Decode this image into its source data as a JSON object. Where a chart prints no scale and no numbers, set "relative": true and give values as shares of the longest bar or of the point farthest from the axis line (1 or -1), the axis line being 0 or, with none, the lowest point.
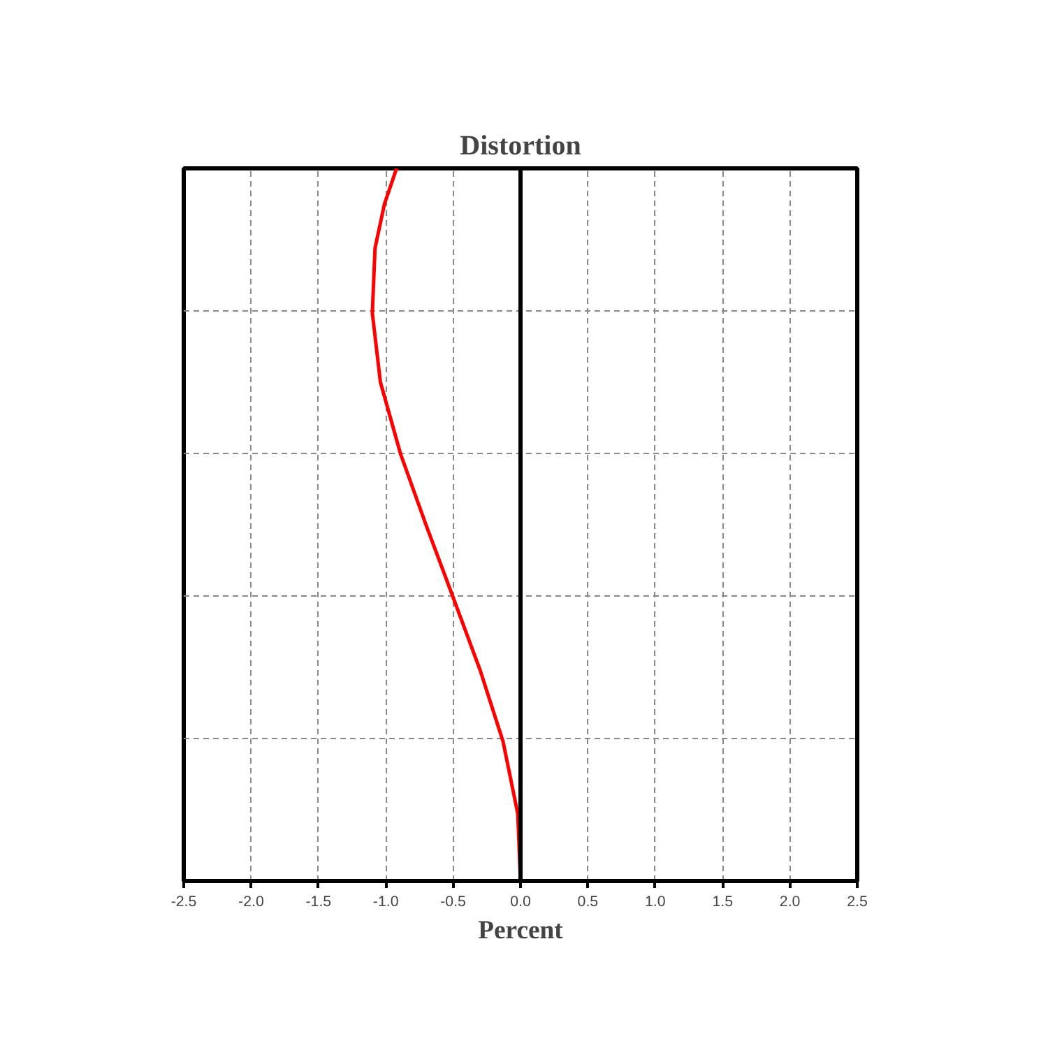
{
  "chart_data": {
    "type": "line",
    "title": "Distortion",
    "xlabel": "Percent",
    "relative": true,
    "x": [
      0,
      -0.02,
      -0.13,
      -0.3,
      -0.5,
      -0.7,
      -0.89,
      -1.04,
      -1.1,
      -1.08,
      -1.01,
      -0.92
    ],
    "series": [
      {
        "color": "#ff0000",
        "values": [
          0,
          0.094,
          0.196,
          0.296,
          0.398,
          0.499,
          0.599,
          0.7,
          0.797,
          0.888,
          0.95,
          1.0
        ]
      }
    ],
    "xlim": [
      -2.5,
      2.5
    ],
    "xticks": [
      {
        "value": -2.5,
        "label": "-2.5"
      },
      {
        "value": -2,
        "label": "-2.0"
      },
      {
        "value": -1.5,
        "label": "-1.5"
      },
      {
        "value": -1,
        "label": "-1.0"
      },
      {
        "value": -0.5,
        "label": "-0.5"
      },
      {
        "value": 0,
        "label": "0.0"
      },
      {
        "value": 0.5,
        "label": "0.5"
      },
      {
        "value": 1,
        "label": "1.0"
      },
      {
        "value": 1.5,
        "label": "1.5"
      },
      {
        "value": 2,
        "label": "2.0"
      },
      {
        "value": 2.5,
        "label": "2.5"
      }
    ],
    "tick_labels": "x",
    "grid": true,
    "line_style": "solid",
    "marker": "none",
    "ref_lines": [
      {
        "axis": "x",
        "value": 0,
        "color": "#000000"
      }
    ]
  }
}
